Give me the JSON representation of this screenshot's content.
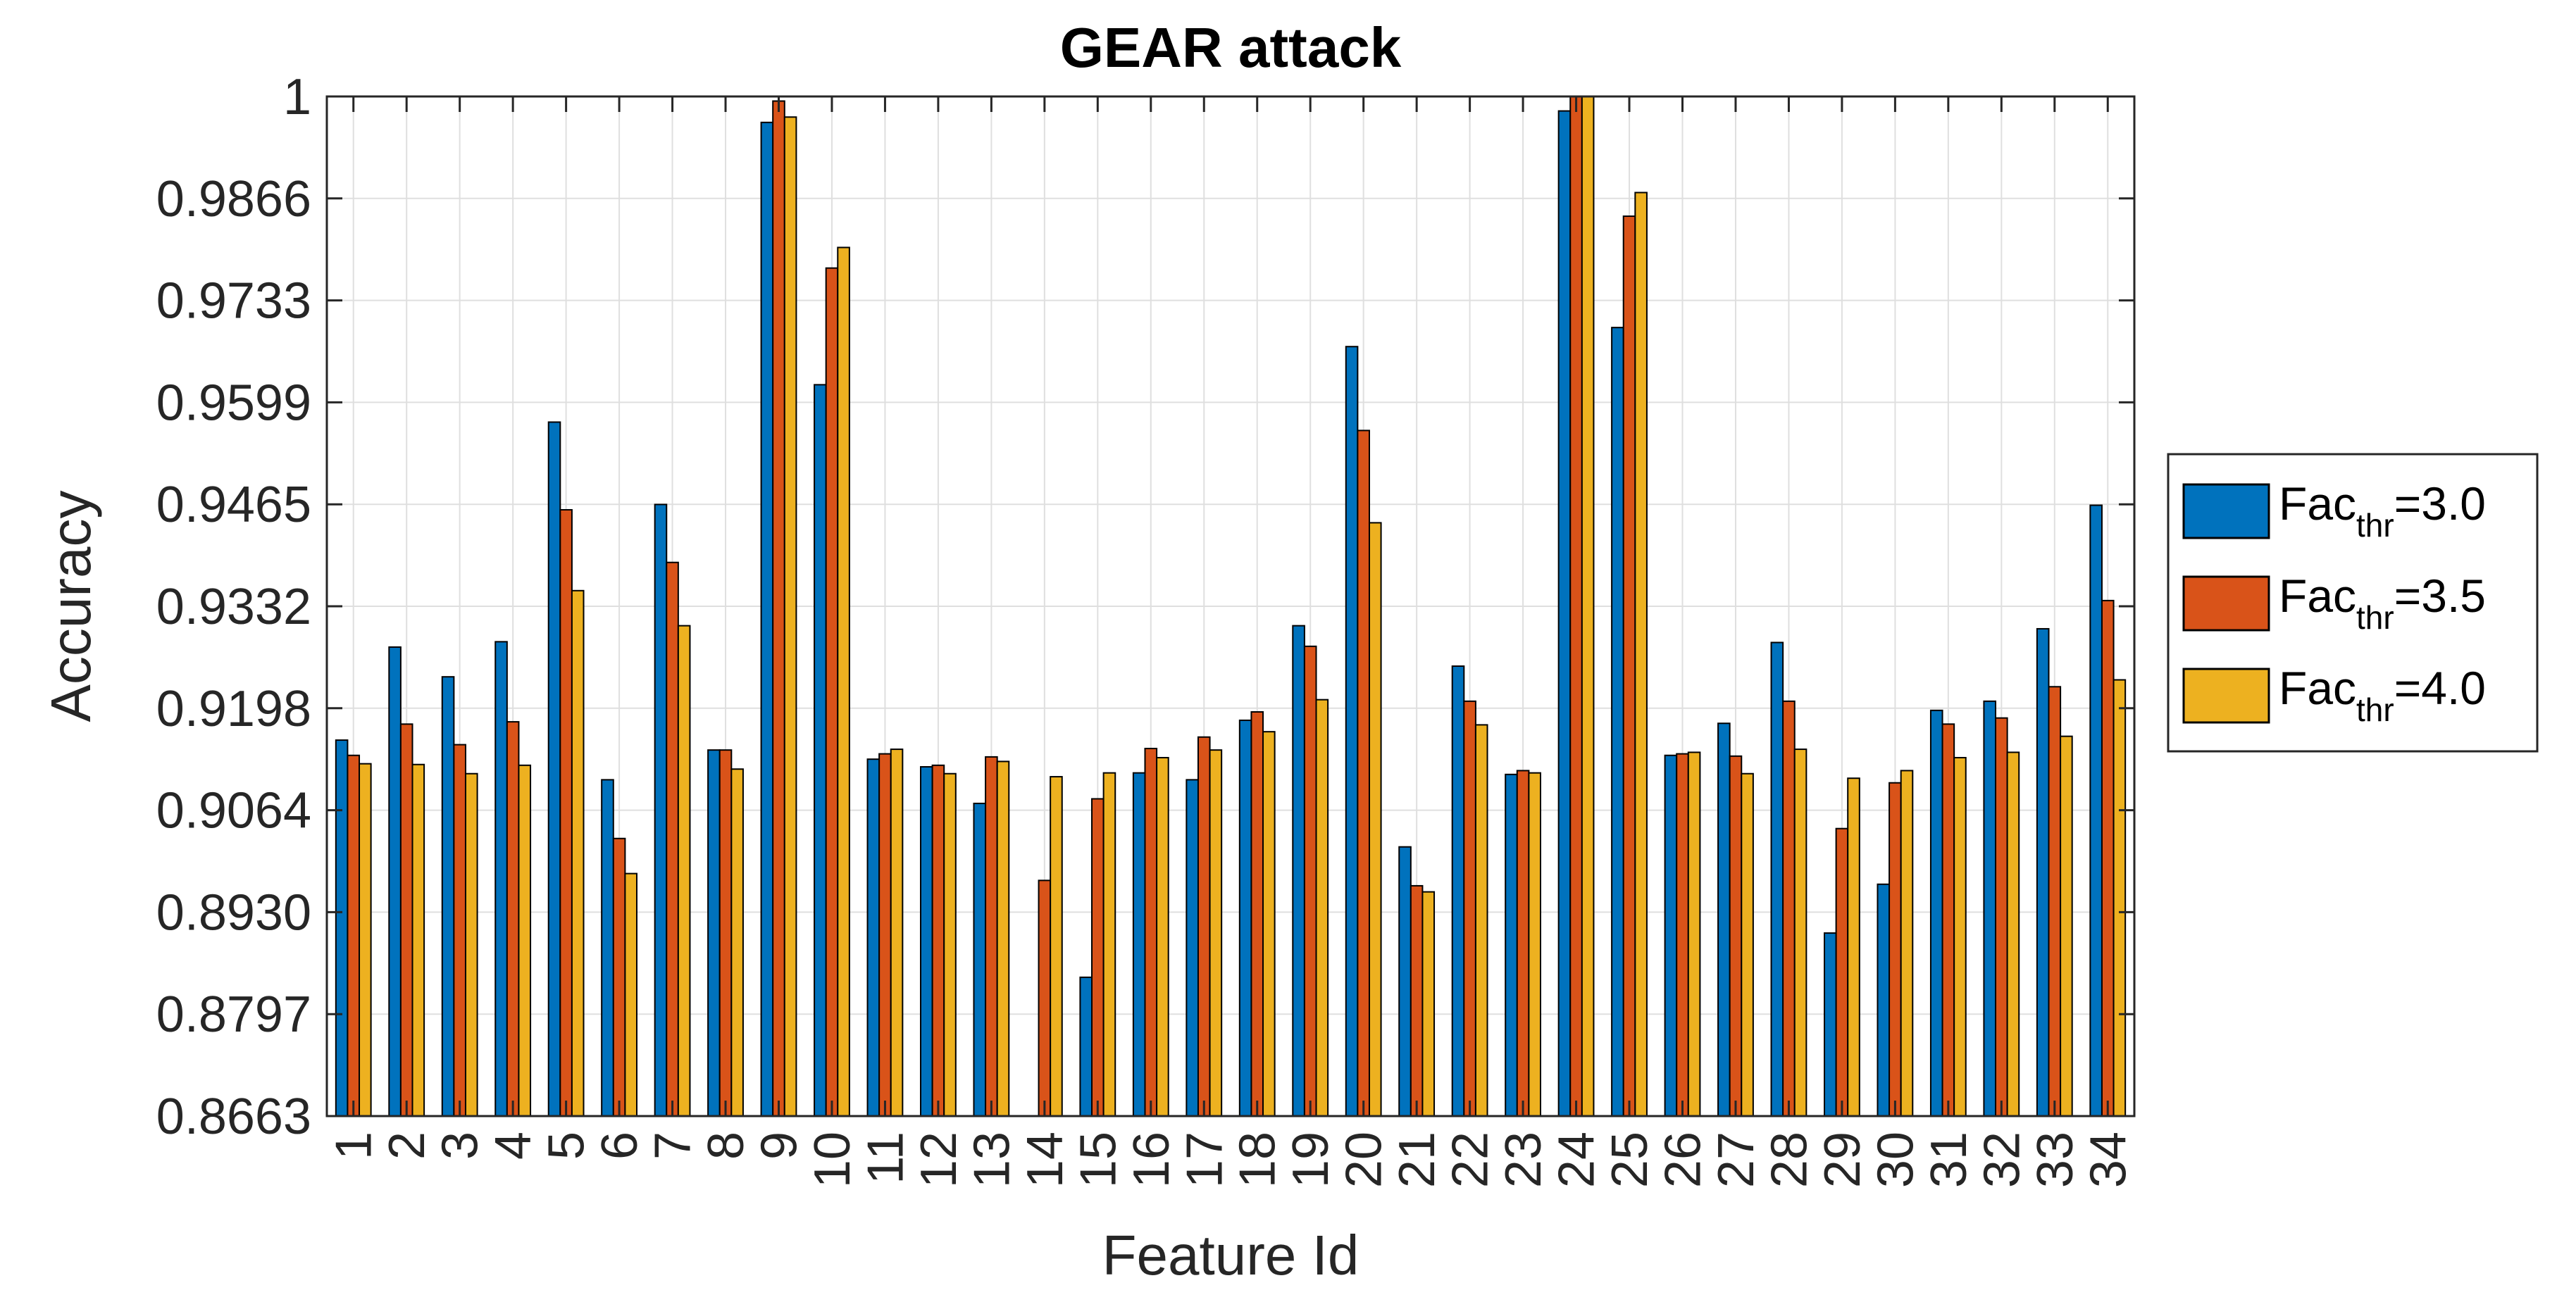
{
  "chart_data": {
    "type": "bar",
    "title": "GEAR attack",
    "xlabel": "Feature Id",
    "ylabel": "Accuracy",
    "ylim": [
      0.8663,
      1.0
    ],
    "yticks": [
      "0.8663",
      "0.8797",
      "0.8930",
      "0.9064",
      "0.9198",
      "0.9332",
      "0.9465",
      "0.9599",
      "0.9733",
      "0.9866",
      "1"
    ],
    "categories": [
      "1",
      "2",
      "3",
      "4",
      "5",
      "6",
      "7",
      "8",
      "9",
      "10",
      "11",
      "12",
      "13",
      "14",
      "15",
      "16",
      "17",
      "18",
      "19",
      "20",
      "21",
      "22",
      "23",
      "24",
      "25",
      "26",
      "27",
      "28",
      "29",
      "30",
      "31",
      "32",
      "33",
      "34"
    ],
    "grid": true,
    "legend_position": "right",
    "colors": [
      "#0072BD",
      "#D95319",
      "#EDB120"
    ],
    "series": [
      {
        "name": "Fac_thr=3.0",
        "label_base": "Fac",
        "label_sub": "thr",
        "label_tail": "=3.0",
        "values": [
          0.9156,
          0.9278,
          0.9239,
          0.9285,
          0.9573,
          0.9104,
          0.9465,
          0.9143,
          0.9966,
          0.9622,
          0.9131,
          0.9121,
          0.9073,
          null,
          0.8845,
          0.9113,
          0.9104,
          0.9182,
          0.9306,
          0.9672,
          0.9016,
          0.9253,
          0.9111,
          0.9981,
          0.9697,
          0.9136,
          0.9178,
          0.9284,
          0.8903,
          0.8967,
          0.9195,
          0.9207,
          0.9302,
          0.9464
        ]
      },
      {
        "name": "Fac_thr=3.5",
        "label_base": "Fac",
        "label_sub": "thr",
        "label_tail": "=3.5",
        "values": [
          0.9136,
          0.9177,
          0.915,
          0.918,
          0.9458,
          0.9027,
          0.9389,
          0.9143,
          0.9994,
          0.9775,
          0.9138,
          0.9123,
          0.9134,
          0.8972,
          0.9079,
          0.9145,
          0.916,
          0.9193,
          0.9279,
          0.9562,
          0.8965,
          0.9207,
          0.9116,
          1.0007,
          0.9843,
          0.9138,
          0.9135,
          0.9207,
          0.904,
          0.91,
          0.9177,
          0.9185,
          0.9226,
          0.9339
        ]
      },
      {
        "name": "Fac_thr=4.0",
        "label_base": "Fac",
        "label_sub": "thr",
        "label_tail": "=4.0",
        "values": [
          0.9125,
          0.9124,
          0.9112,
          0.9123,
          0.9352,
          0.8981,
          0.9306,
          0.9118,
          0.9973,
          0.9802,
          0.9144,
          0.9112,
          0.9128,
          0.9108,
          0.9113,
          0.9133,
          0.9143,
          0.9167,
          0.9209,
          0.9441,
          0.8957,
          0.9176,
          0.9113,
          1.0004,
          0.9874,
          0.914,
          0.9112,
          0.9144,
          0.9106,
          0.9116,
          0.9133,
          0.914,
          0.9161,
          0.9235
        ]
      }
    ]
  }
}
